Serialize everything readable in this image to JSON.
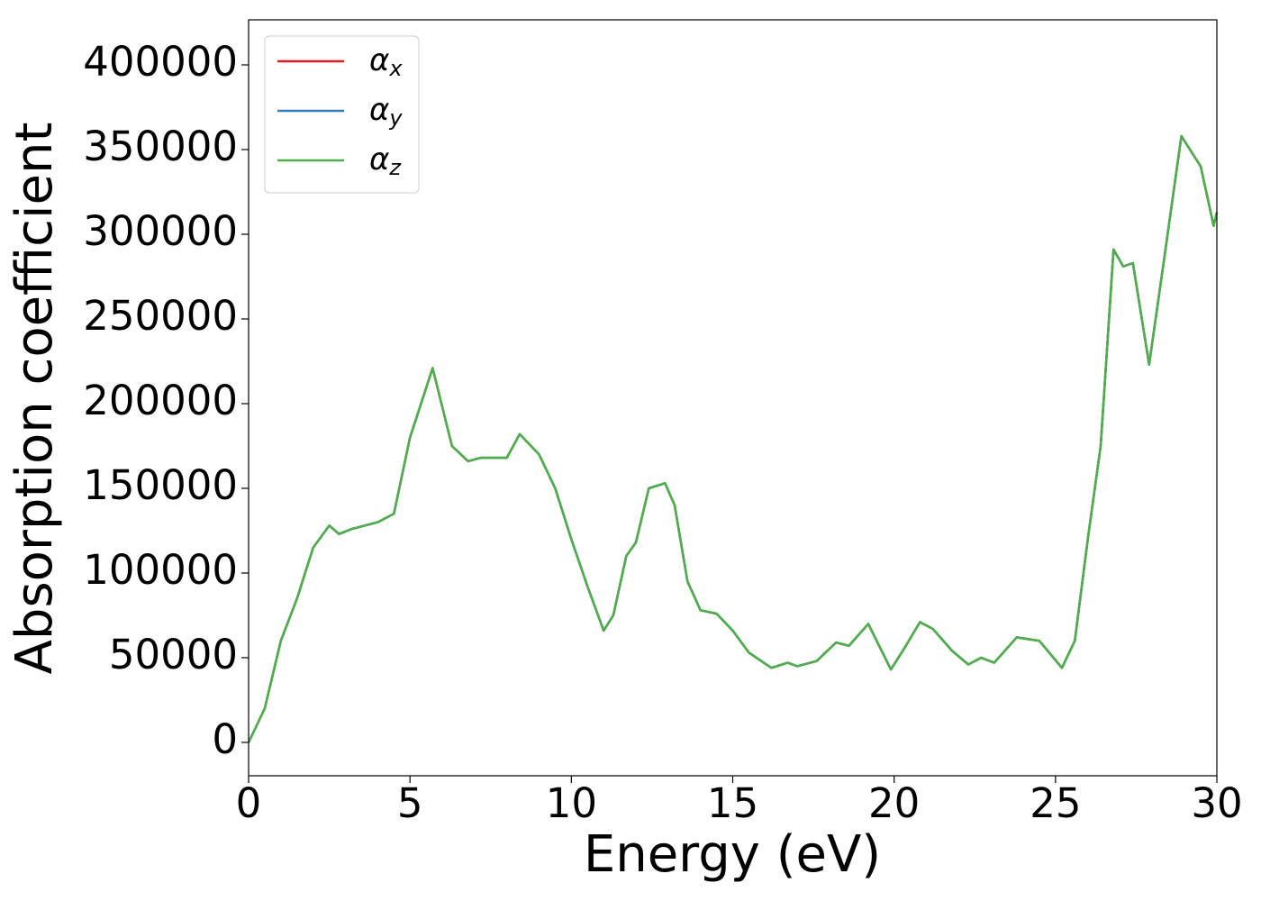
{
  "chart_data": {
    "type": "line",
    "xlabel": "Energy (eV)",
    "ylabel": "Absorption coefficient",
    "x": [
      0,
      0.5,
      1.0,
      1.5,
      2.0,
      2.5,
      2.8,
      3.2,
      4.0,
      4.5,
      5.0,
      5.7,
      6.3,
      6.8,
      7.2,
      8.0,
      8.4,
      9.0,
      9.5,
      10.0,
      10.5,
      11.0,
      11.3,
      11.7,
      12.0,
      12.4,
      12.9,
      13.2,
      13.6,
      14.0,
      14.5,
      15.0,
      15.5,
      16.2,
      16.7,
      17.0,
      17.6,
      18.2,
      18.6,
      19.2,
      19.9,
      20.3,
      20.8,
      21.2,
      21.8,
      22.3,
      22.7,
      23.1,
      23.8,
      24.5,
      25.2,
      25.6,
      26.0,
      26.4,
      26.8,
      27.1,
      27.4,
      27.9,
      28.4,
      28.9,
      29.5,
      29.9,
      30.0
    ],
    "series": [
      {
        "name": "αx",
        "color": "#e41a1c",
        "values": [
          0,
          20000,
          60000,
          85000,
          115000,
          128000,
          123000,
          126000,
          130000,
          135000,
          180000,
          221000,
          175000,
          166000,
          168000,
          168000,
          182000,
          170000,
          150000,
          120000,
          92000,
          66000,
          75000,
          110000,
          118000,
          150000,
          153000,
          140000,
          95000,
          78000,
          76000,
          66000,
          53000,
          44000,
          47000,
          45000,
          48000,
          59000,
          57000,
          70000,
          43000,
          55000,
          71000,
          67000,
          54000,
          46000,
          50000,
          47000,
          62000,
          60000,
          44000,
          60000,
          120000,
          175000,
          291000,
          281000,
          283000,
          223000,
          290000,
          358000,
          340000,
          305000,
          313000
        ]
      },
      {
        "name": "αy",
        "color": "#377eb8",
        "values": [
          0,
          20000,
          60000,
          85000,
          115000,
          128000,
          123000,
          126000,
          130000,
          135000,
          180000,
          221000,
          175000,
          166000,
          168000,
          168000,
          182000,
          170000,
          150000,
          120000,
          92000,
          66000,
          75000,
          110000,
          118000,
          150000,
          153000,
          140000,
          95000,
          78000,
          76000,
          66000,
          53000,
          44000,
          47000,
          45000,
          48000,
          59000,
          57000,
          70000,
          43000,
          55000,
          71000,
          67000,
          54000,
          46000,
          50000,
          47000,
          62000,
          60000,
          44000,
          60000,
          120000,
          175000,
          291000,
          281000,
          283000,
          223000,
          290000,
          358000,
          340000,
          305000,
          313000
        ]
      },
      {
        "name": "αz",
        "color": "#4daf4a",
        "values": [
          0,
          20000,
          60000,
          85000,
          115000,
          128000,
          123000,
          126000,
          130000,
          135000,
          180000,
          221000,
          175000,
          166000,
          168000,
          168000,
          182000,
          170000,
          150000,
          120000,
          92000,
          66000,
          75000,
          110000,
          118000,
          150000,
          153000,
          140000,
          95000,
          78000,
          76000,
          66000,
          53000,
          44000,
          47000,
          45000,
          48000,
          59000,
          57000,
          70000,
          43000,
          55000,
          71000,
          67000,
          54000,
          46000,
          50000,
          47000,
          62000,
          60000,
          44000,
          60000,
          120000,
          175000,
          291000,
          281000,
          283000,
          223000,
          290000,
          358000,
          340000,
          305000,
          313000
        ]
      }
    ],
    "xlim": [
      0,
      30
    ],
    "xticks": [
      0,
      5,
      10,
      15,
      20,
      25,
      30
    ],
    "ylim": [
      -19700,
      426600
    ],
    "yticks": [
      0,
      50000,
      100000,
      150000,
      200000,
      250000,
      300000,
      350000,
      400000
    ],
    "legend": "upper left"
  }
}
